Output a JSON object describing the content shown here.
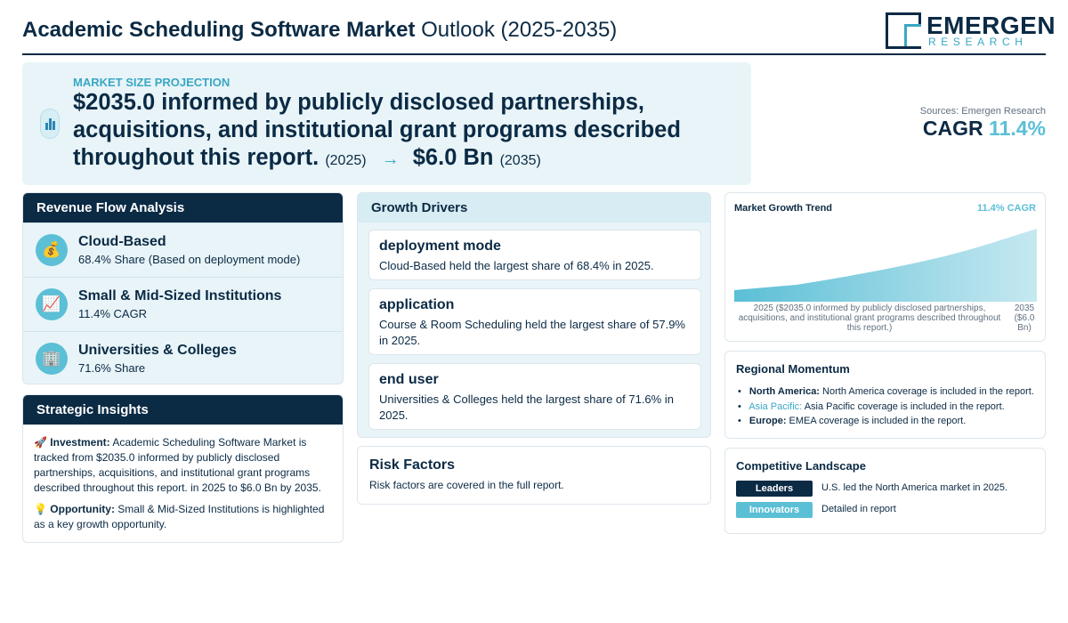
{
  "header": {
    "title_bold": "Academic Scheduling Software Market",
    "title_rest": "Outlook (2025-2035)",
    "logo_main": "EMERGEN",
    "logo_sub": "RESEARCH"
  },
  "hero": {
    "label": "MARKET SIZE PROJECTION",
    "start_value": "$2035.0 informed by publicly disclosed partnerships, acquisitions, and institutional grant programs described throughout this report.",
    "start_year": "(2025)",
    "arrow": "→",
    "end_value": "$6.0 Bn",
    "end_year": "(2035)"
  },
  "summary": {
    "sources": "Sources: Emergen Research",
    "cagr_label": "CAGR",
    "cagr_value": "11.4%"
  },
  "revenue_flow": {
    "title": "Revenue Flow Analysis",
    "items": [
      {
        "icon": "money-bag-icon",
        "glyph": "💰",
        "title": "Cloud-Based",
        "sub": "68.4% Share (Based on deployment mode)"
      },
      {
        "icon": "chart-up-icon",
        "glyph": "📈",
        "title": "Small & Mid-Sized Institutions",
        "sub": "11.4% CAGR"
      },
      {
        "icon": "building-icon",
        "glyph": "🏢",
        "title": "Universities & Colleges",
        "sub": "71.6% Share"
      }
    ]
  },
  "strategic": {
    "title": "Strategic Insights",
    "investment_label": "Investment:",
    "investment_text": "Academic Scheduling Software Market is tracked from $2035.0 informed by publicly disclosed partnerships, acquisitions, and institutional grant programs described throughout this report. in 2025 to $6.0 Bn by 2035.",
    "opportunity_label": "Opportunity:",
    "opportunity_text": "Small & Mid-Sized Institutions is highlighted as a key growth opportunity."
  },
  "growth_drivers": {
    "title": "Growth Drivers",
    "items": [
      {
        "title": "deployment mode",
        "text": "Cloud-Based held the largest share of 68.4% in 2025."
      },
      {
        "title": "application",
        "text": "Course & Room Scheduling held the largest share of 57.9% in 2025."
      },
      {
        "title": "end user",
        "text": "Universities & Colleges held the largest share of 71.6% in 2025."
      }
    ]
  },
  "risk": {
    "title": "Risk Factors",
    "text": "Risk factors are covered in the full report."
  },
  "chart_data": {
    "type": "area",
    "title": "Market Growth Trend",
    "annotation": "11.4% CAGR",
    "x": [
      "2025",
      "2035"
    ],
    "x_labels": [
      "2025 ($2035.0 informed by publicly disclosed partnerships, acquisitions, and institutional grant programs described throughout this report.)",
      "2035 ($6.0 Bn)"
    ],
    "grid": false,
    "color": "#5bbfd6"
  },
  "regional": {
    "title": "Regional Momentum",
    "items": [
      {
        "region": "North America:",
        "text": "North America coverage is included in the report."
      },
      {
        "region": "Asia Pacific:",
        "text": "Asia Pacific coverage is included in the report."
      },
      {
        "region": "Europe:",
        "text": "EMEA coverage is included in the report."
      }
    ]
  },
  "competitive": {
    "title": "Competitive Landscape",
    "leaders_label": "Leaders",
    "leaders_text": "U.S. led the North America market in 2025.",
    "innovators_label": "Innovators",
    "innovators_text": "Detailed in report"
  },
  "colors": {
    "navy": "#0b2a44",
    "accent": "#5bbfd6",
    "panel_bg": "#e8f4f8"
  }
}
